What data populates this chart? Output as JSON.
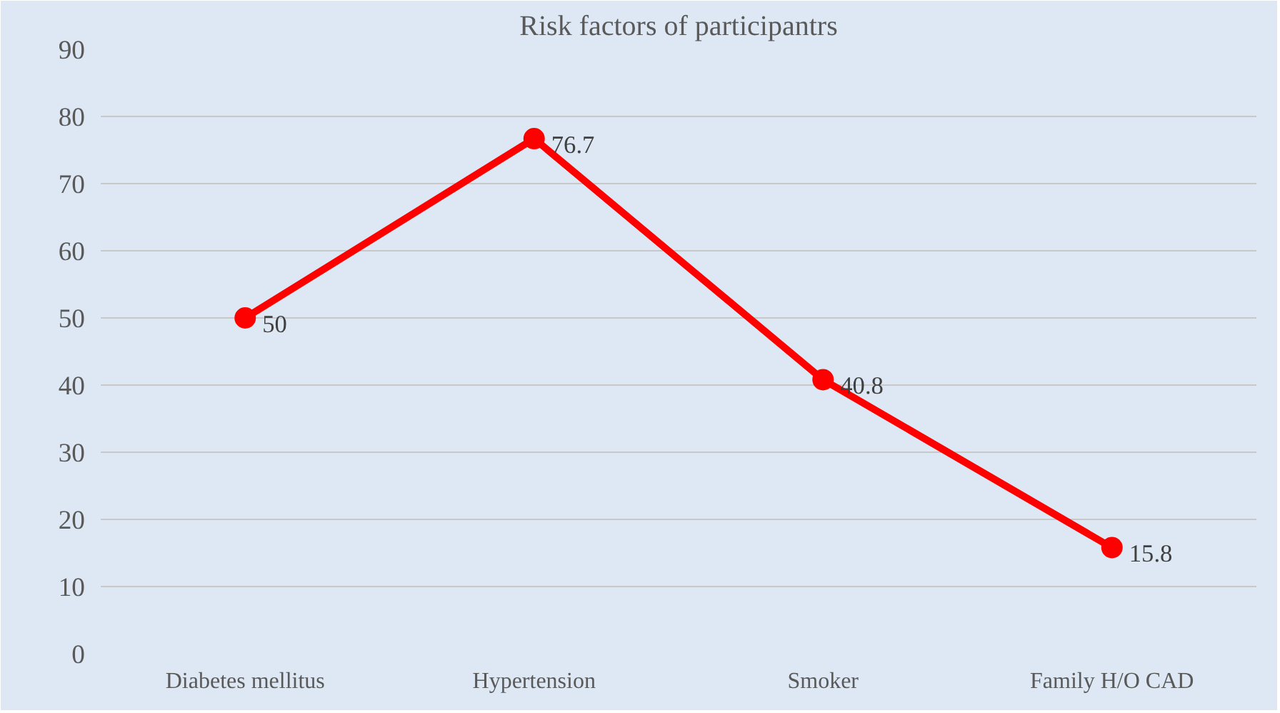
{
  "chart_data": {
    "type": "line",
    "title": "Risk factors of participantrs",
    "categories": [
      "Diabetes mellitus",
      "Hypertension",
      "Smoker",
      "Family H/O CAD"
    ],
    "values": [
      50,
      76.7,
      40.8,
      15.8
    ],
    "color": "#ff0000",
    "ylim": [
      0,
      90
    ],
    "yticks": [
      0,
      10,
      20,
      30,
      40,
      50,
      60,
      70,
      80,
      90
    ],
    "grid": "y",
    "marker": "circle",
    "line_style": "solid",
    "data_labels": true
  }
}
